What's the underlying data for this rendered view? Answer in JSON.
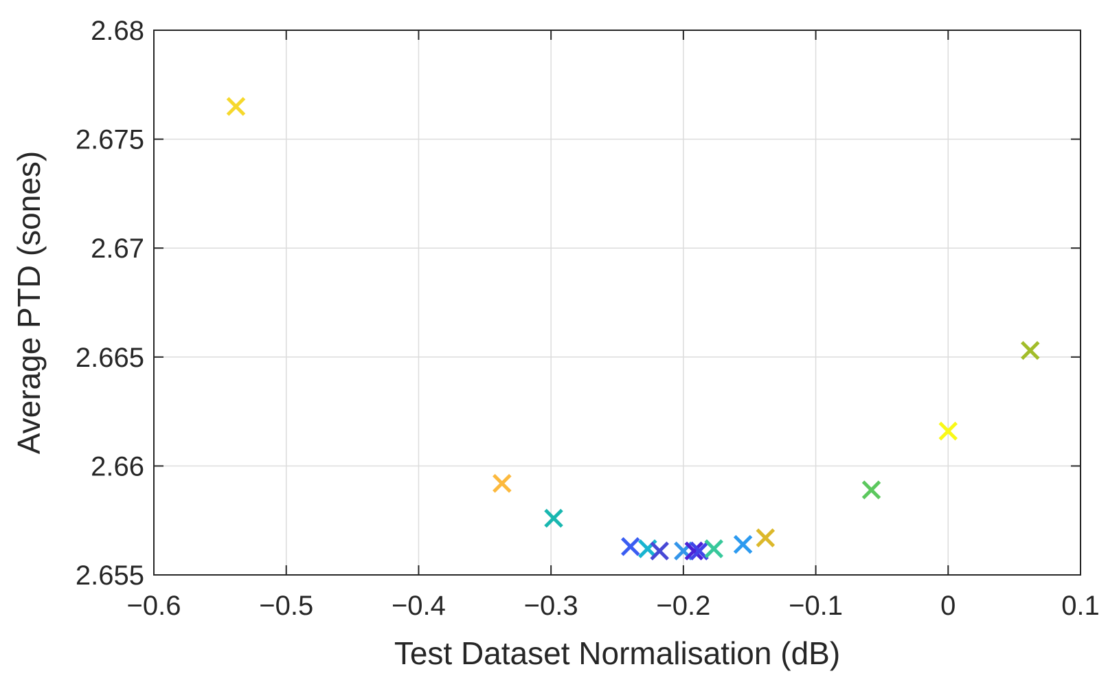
{
  "chart_data": {
    "type": "scatter",
    "title": "",
    "xlabel": "Test Dataset Normalisation (dB)",
    "ylabel": "Average PTD (sones)",
    "xlim": [
      -0.6,
      0.1
    ],
    "ylim": [
      2.655,
      2.68
    ],
    "xticks": [
      -0.6,
      -0.5,
      -0.4,
      -0.3,
      -0.2,
      -0.1,
      0,
      0.1
    ],
    "xtick_labels": [
      "−0.6",
      "−0.5",
      "−0.4",
      "−0.3",
      "−0.2",
      "−0.1",
      "0",
      "0.1"
    ],
    "yticks": [
      2.655,
      2.66,
      2.665,
      2.67,
      2.675,
      2.68
    ],
    "ytick_labels": [
      "2.655",
      "2.66",
      "2.665",
      "2.67",
      "2.675",
      "2.68"
    ],
    "grid": true,
    "legend": "none",
    "marker": "x",
    "points": [
      {
        "x": -0.538,
        "y": 2.6765,
        "color": "#f6d82c"
      },
      {
        "x": -0.337,
        "y": 2.6592,
        "color": "#fcb93d"
      },
      {
        "x": -0.298,
        "y": 2.6576,
        "color": "#19b7b0"
      },
      {
        "x": -0.24,
        "y": 2.6563,
        "color": "#3a5df2"
      },
      {
        "x": -0.227,
        "y": 2.6562,
        "color": "#18b4d0"
      },
      {
        "x": -0.218,
        "y": 2.6561,
        "color": "#4748d6"
      },
      {
        "x": -0.2,
        "y": 2.6561,
        "color": "#3395ea"
      },
      {
        "x": -0.192,
        "y": 2.6561,
        "color": "#4b22d6"
      },
      {
        "x": -0.188,
        "y": 2.6561,
        "color": "#4045e8"
      },
      {
        "x": -0.177,
        "y": 2.6562,
        "color": "#37c89b"
      },
      {
        "x": -0.155,
        "y": 2.6564,
        "color": "#2c9af0"
      },
      {
        "x": -0.138,
        "y": 2.6567,
        "color": "#dcb82a"
      },
      {
        "x": -0.058,
        "y": 2.6589,
        "color": "#5cc85e"
      },
      {
        "x": 0.0,
        "y": 2.6616,
        "color": "#f9f918"
      },
      {
        "x": 0.062,
        "y": 2.6653,
        "color": "#a2bd2a"
      }
    ]
  }
}
